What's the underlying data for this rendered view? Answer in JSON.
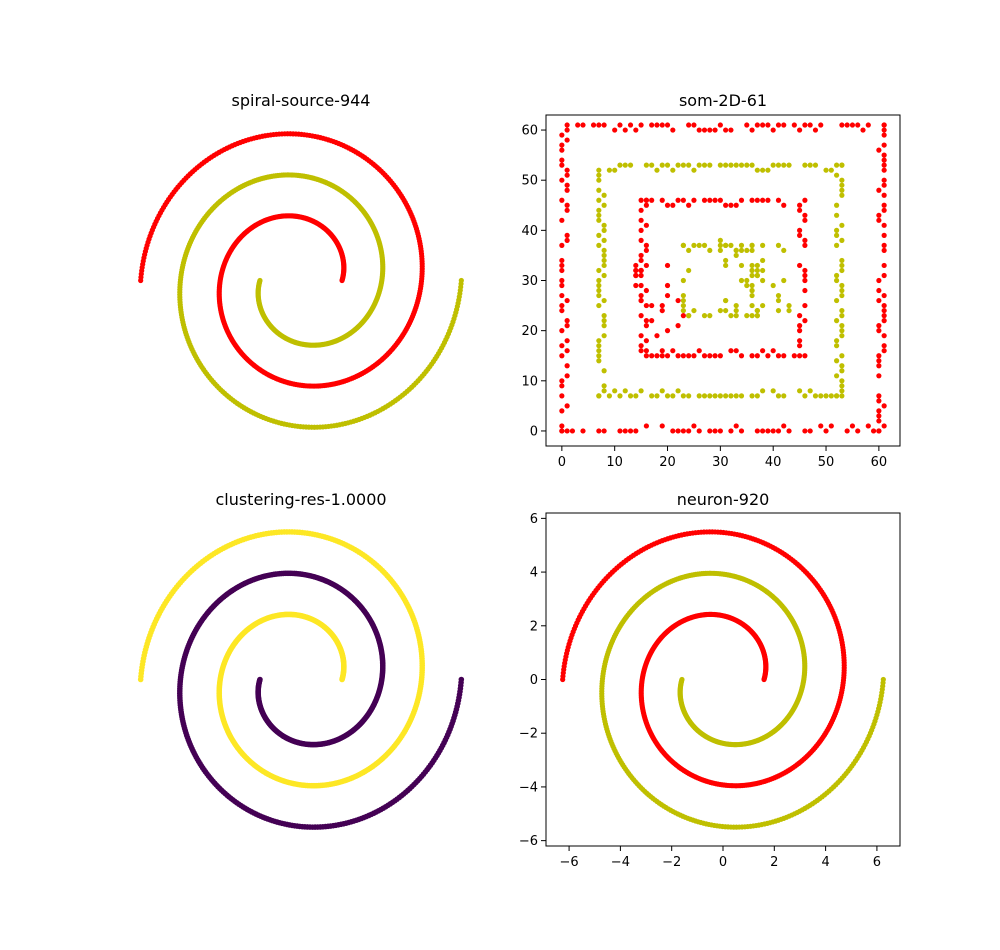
{
  "colors": {
    "red": "#ff0000",
    "olive": "#bfbf00",
    "viridis_purple": "#440154",
    "viridis_yellow": "#fde725",
    "axis": "#000000"
  },
  "chart_data": [
    {
      "type": "scatter",
      "title": "spiral-source-944",
      "axes_visible": false,
      "spiral_turns": 1.5,
      "series": [
        {
          "color": "red",
          "arm": "A"
        },
        {
          "color": "olive",
          "arm": "B"
        }
      ]
    },
    {
      "type": "scatter",
      "title": "som-2D-61",
      "axes_visible": true,
      "xlim": [
        -3,
        64
      ],
      "ylim": [
        -3,
        63
      ],
      "xticks": [
        "0",
        "10",
        "20",
        "30",
        "40",
        "50",
        "60"
      ],
      "yticks": [
        "0",
        "10",
        "20",
        "30",
        "40",
        "50",
        "60"
      ],
      "grid_size": 61,
      "rings": [
        {
          "color": "red",
          "level": 0
        },
        {
          "color": "olive",
          "level": 7
        },
        {
          "color": "red",
          "level": 15
        },
        {
          "color": "olive",
          "level": 23
        }
      ]
    },
    {
      "type": "scatter",
      "title": "clustering-res-1.0000",
      "axes_visible": false,
      "series": [
        {
          "color": "viridis_yellow",
          "arm": "A"
        },
        {
          "color": "viridis_purple",
          "arm": "B"
        }
      ]
    },
    {
      "type": "scatter",
      "title": "neuron-920",
      "axes_visible": true,
      "xlim": [
        -6.9,
        6.9
      ],
      "ylim": [
        -6.2,
        6.2
      ],
      "xticks": [
        "−6",
        "−4",
        "−2",
        "0",
        "2",
        "4",
        "6"
      ],
      "yticks": [
        "−6",
        "−4",
        "−2",
        "0",
        "2",
        "4",
        "6"
      ],
      "series": [
        {
          "color": "red",
          "arm": "A"
        },
        {
          "color": "olive",
          "arm": "B"
        }
      ]
    }
  ]
}
